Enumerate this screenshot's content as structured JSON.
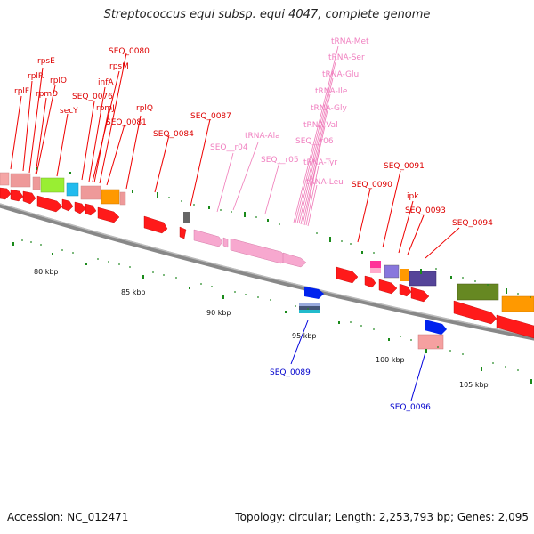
{
  "title": "Streptococcus equi subsp. equi 4047, complete genome",
  "footer": {
    "accession": "Accession: NC_012471",
    "summary": "Topology: circular; Length: 2,253,793 bp; Genes: 2,095"
  },
  "colors": {
    "gene_red": "#ff0000",
    "gene_pink": "#f7a8cf",
    "label_red": "#dd0000",
    "label_pink": "#f080c0",
    "label_blue": "#0000cc",
    "backbone": "#888888",
    "tick_green": "#1a8a1a"
  },
  "scale_ticks": [
    "80 kbp",
    "85 kbp",
    "90 kbp",
    "95 kbp",
    "100 kbp",
    "105 kbp"
  ],
  "labels": {
    "red": [
      "rpsE",
      "rplR",
      "rplF",
      "rplO",
      "rpmD",
      "secY",
      "SEQ_0076",
      "infA",
      "rpmJ",
      "SEQ_0081",
      "SEQ_0080",
      "rpsM",
      "rplQ",
      "SEQ_0084",
      "SEQ_0087",
      "SEQ_0090",
      "SEQ_0091",
      "ipk",
      "SEQ_0093",
      "SEQ_0094"
    ],
    "pink": [
      "tRNA-Met",
      "tRNA-Ser",
      "tRNA-Glu",
      "tRNA-Ile",
      "tRNA-Gly",
      "tRNA-Val",
      "SEQ__r06",
      "tRNA-Tyr",
      "tRNA-Leu",
      "tRNA-Ala",
      "SEQ__r04",
      "SEQ__r05"
    ],
    "blue": [
      "SEQ_0089",
      "SEQ_0096"
    ]
  }
}
